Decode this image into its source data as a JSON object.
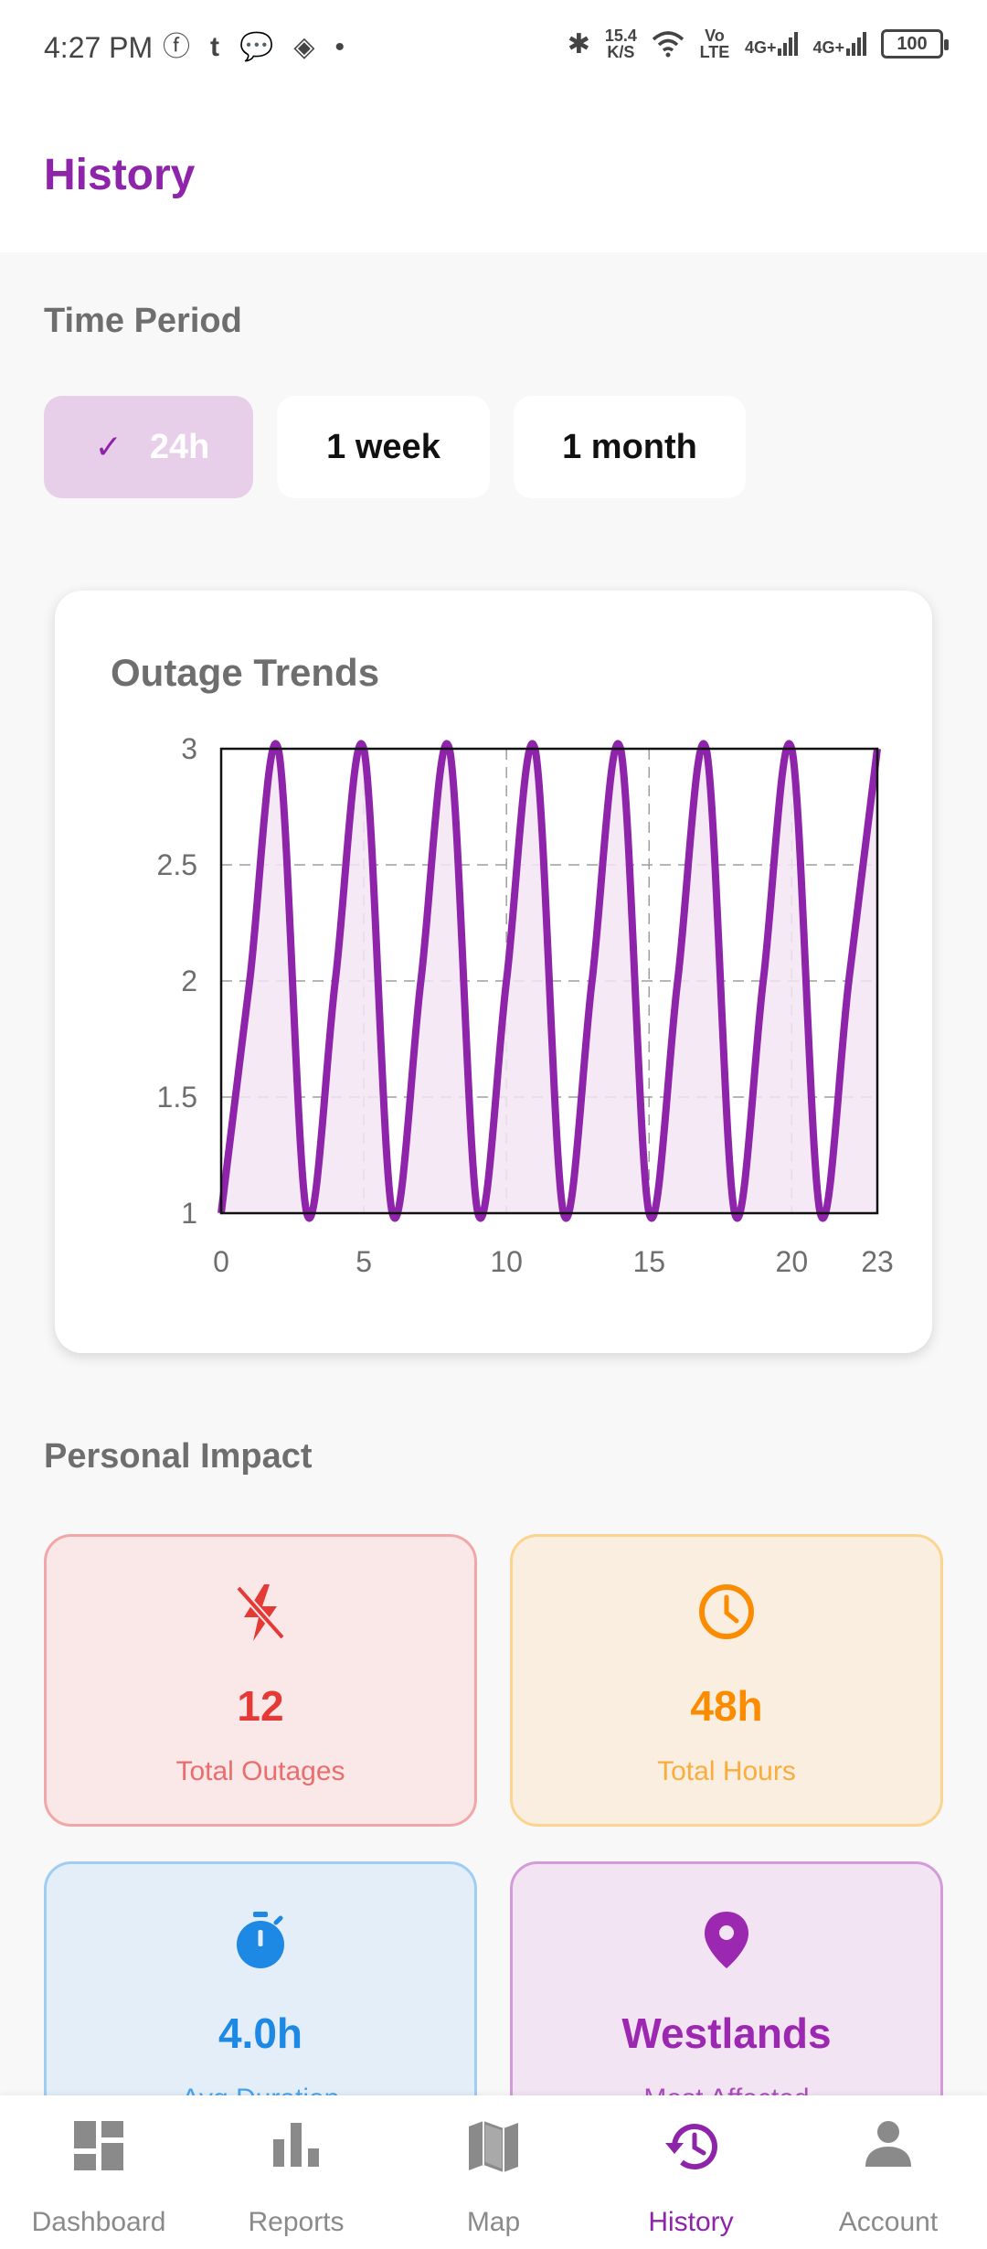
{
  "status_bar": {
    "time": "4:27 PM",
    "left_icons": [
      "facebook-icon",
      "tumblr-icon",
      "chat-icon",
      "binance-icon",
      "dot-icon"
    ],
    "network_speed_value": "15.4",
    "network_speed_unit": "K/S",
    "volte": "Vo LTE",
    "signal1": "4G+",
    "signal2": "4G+",
    "battery": "100"
  },
  "app_bar": {
    "title": "History"
  },
  "time_period": {
    "label": "Time Period",
    "options": [
      "24h",
      "1 week",
      "1 month"
    ],
    "selected": "24h"
  },
  "chart": {
    "title": "Outage Trends"
  },
  "chart_data": {
    "type": "area",
    "title": "Outage Trends",
    "xlabel": "",
    "ylabel": "",
    "x": [
      0,
      1,
      2,
      3,
      4,
      5,
      6,
      7,
      8,
      9,
      10,
      11,
      12,
      13,
      14,
      15,
      16,
      17,
      18,
      19,
      20,
      21,
      22,
      23
    ],
    "series": [
      {
        "values": [
          1,
          2,
          3,
          1,
          2,
          3,
          1,
          2,
          3,
          1,
          2,
          3,
          1,
          2,
          3,
          1,
          2,
          3,
          1,
          2,
          3,
          1,
          2,
          3
        ]
      }
    ],
    "xlim": [
      0,
      23
    ],
    "ylim": [
      1,
      3
    ],
    "x_ticks": [
      "0",
      "5",
      "10",
      "15",
      "20",
      "23"
    ],
    "y_ticks": [
      "1",
      "1.5",
      "2",
      "2.5",
      "3"
    ],
    "grid": true,
    "colors": {
      "line": "#8e24aa",
      "fill": "#f3e5f5"
    }
  },
  "personal_impact": {
    "label": "Personal Impact",
    "cards": [
      {
        "value": "12",
        "label": "Total Outages",
        "icon": "power-off-icon",
        "color": "#e53935"
      },
      {
        "value": "48h",
        "label": "Total Hours",
        "icon": "clock-icon",
        "color": "#fb8c00"
      },
      {
        "value": "4.0h",
        "label": "Avg Duration",
        "icon": "stopwatch-icon",
        "color": "#1e88e5"
      },
      {
        "value": "Westlands",
        "label": "Most Affected",
        "icon": "location-pin-icon",
        "color": "#9c27b0"
      }
    ]
  },
  "bottom_nav": {
    "items": [
      {
        "label": "Dashboard",
        "icon": "dashboard-icon"
      },
      {
        "label": "Reports",
        "icon": "bar-chart-icon"
      },
      {
        "label": "Map",
        "icon": "map-icon"
      },
      {
        "label": "History",
        "icon": "history-icon"
      },
      {
        "label": "Account",
        "icon": "account-icon"
      }
    ],
    "active": "History",
    "active_color": "#8e24aa",
    "inactive_color": "#8a8a8a"
  }
}
